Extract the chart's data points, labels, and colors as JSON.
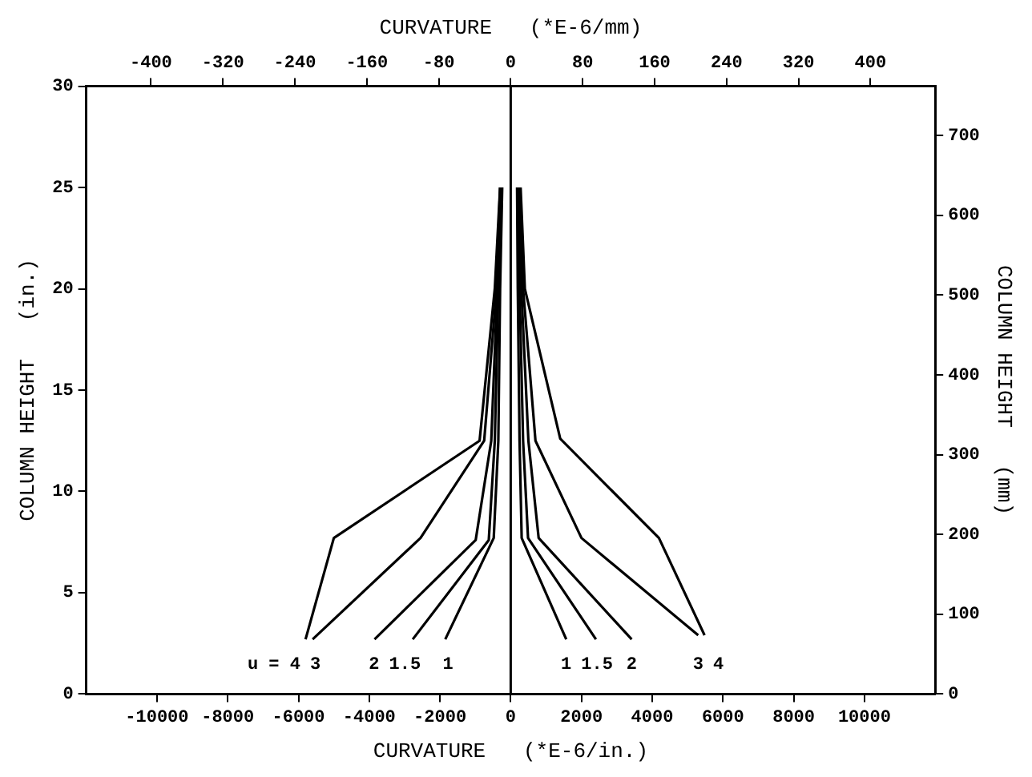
{
  "chart_data": {
    "type": "line",
    "xlabel": "CURVATURE   (*E-6/in.)",
    "x2label": "CURVATURE   (*E-6/mm)",
    "ylabel": "COLUMN HEIGHT   (in.)",
    "y2label": "COLUMN HEIGHT   (mm)",
    "xlim": [
      -12000,
      12000
    ],
    "xticks": [
      -10000,
      -8000,
      -6000,
      -4000,
      -2000,
      0,
      2000,
      4000,
      6000,
      8000,
      10000
    ],
    "x2lim": [
      -472,
      472
    ],
    "x2ticks": [
      -400,
      -320,
      -240,
      -160,
      -80,
      0,
      80,
      160,
      240,
      320,
      400
    ],
    "ylim": [
      0,
      30
    ],
    "yticks": [
      0,
      5,
      10,
      15,
      20,
      25,
      30
    ],
    "y2lim": [
      0,
      762
    ],
    "y2ticks": [
      0,
      100,
      200,
      300,
      400,
      500,
      600,
      700
    ],
    "marker": "none",
    "line_style": "solid",
    "ref_lines": [
      {
        "axis": "x",
        "value": 0,
        "color": "#000000"
      }
    ],
    "series": [
      {
        "name": "u = 4",
        "color": "#000000",
        "x": [
          -5800,
          -5000,
          -880,
          -450,
          -300
        ],
        "values": [
          2.7,
          7.7,
          12.5,
          20,
          25
        ]
      },
      {
        "name": "3",
        "color": "#000000",
        "x": [
          -5600,
          -2550,
          -750,
          -400,
          -300
        ],
        "values": [
          2.7,
          7.7,
          12.5,
          20,
          25
        ]
      },
      {
        "name": "2",
        "color": "#000000",
        "x": [
          -3850,
          -990,
          -550,
          -380,
          -280
        ],
        "values": [
          2.7,
          7.6,
          12.5,
          20,
          25
        ]
      },
      {
        "name": "1.5",
        "color": "#000000",
        "x": [
          -2770,
          -620,
          -450,
          -350,
          -260
        ],
        "values": [
          2.7,
          7.6,
          12.5,
          20,
          25
        ]
      },
      {
        "name": "1",
        "color": "#000000",
        "x": [
          -1850,
          -480,
          -350,
          -300,
          -240
        ],
        "values": [
          2.7,
          7.7,
          12.5,
          20,
          25
        ]
      },
      {
        "name": "1",
        "color": "#000000",
        "x": [
          1570,
          310,
          250,
          200,
          180
        ],
        "values": [
          2.7,
          7.7,
          12.5,
          20,
          25
        ]
      },
      {
        "name": "1.5",
        "color": "#000000",
        "x": [
          2410,
          490,
          350,
          250,
          200
        ],
        "values": [
          2.7,
          7.7,
          12.5,
          20,
          25
        ]
      },
      {
        "name": "2",
        "color": "#000000",
        "x": [
          3420,
          790,
          500,
          300,
          220
        ],
        "values": [
          2.7,
          7.7,
          12.5,
          20,
          25
        ]
      },
      {
        "name": "3",
        "color": "#000000",
        "x": [
          5300,
          2000,
          700,
          350,
          250
        ],
        "values": [
          2.9,
          7.7,
          12.5,
          20,
          25
        ]
      },
      {
        "name": "4",
        "color": "#000000",
        "x": [
          5480,
          4190,
          1400,
          400,
          280
        ],
        "values": [
          2.9,
          7.7,
          12.6,
          20,
          25
        ]
      }
    ]
  }
}
